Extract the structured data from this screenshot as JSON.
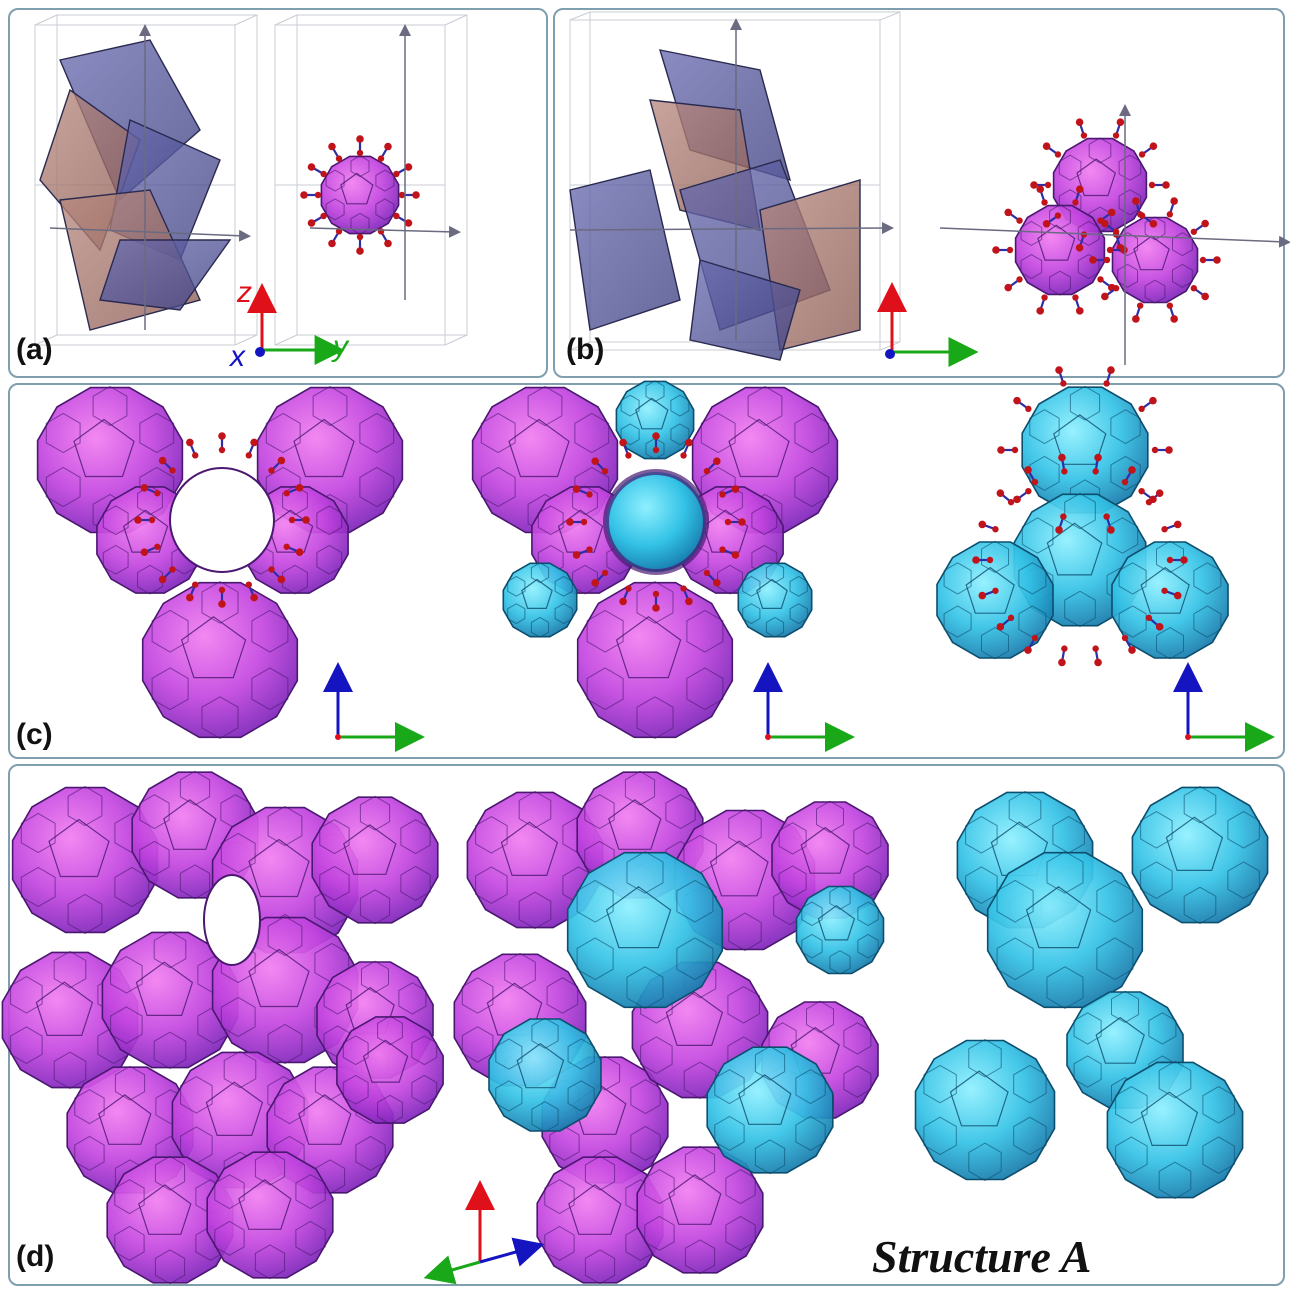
{
  "panels": {
    "a": {
      "label": "(a)"
    },
    "b": {
      "label": "(b)"
    },
    "c": {
      "label": "(c)"
    },
    "d": {
      "label": "(d)"
    }
  },
  "axes": {
    "z": "z",
    "x": "x",
    "y": "y"
  },
  "caption": "Structure A",
  "colors": {
    "magenta": "#c04ee0",
    "magenta_dark": "#8a2fc0",
    "cyan": "#39c6e6",
    "cyan_dark": "#1a8fb8",
    "tetra_blue": "#5a5c9e",
    "tetra_brown": "#a07468",
    "atom_red": "#c0141a",
    "bond_blue": "#2e2ea8",
    "frame": "#7f9fae",
    "axis_red": "#e0101a",
    "axis_green": "#18a818",
    "axis_blue": "#1414c0"
  }
}
